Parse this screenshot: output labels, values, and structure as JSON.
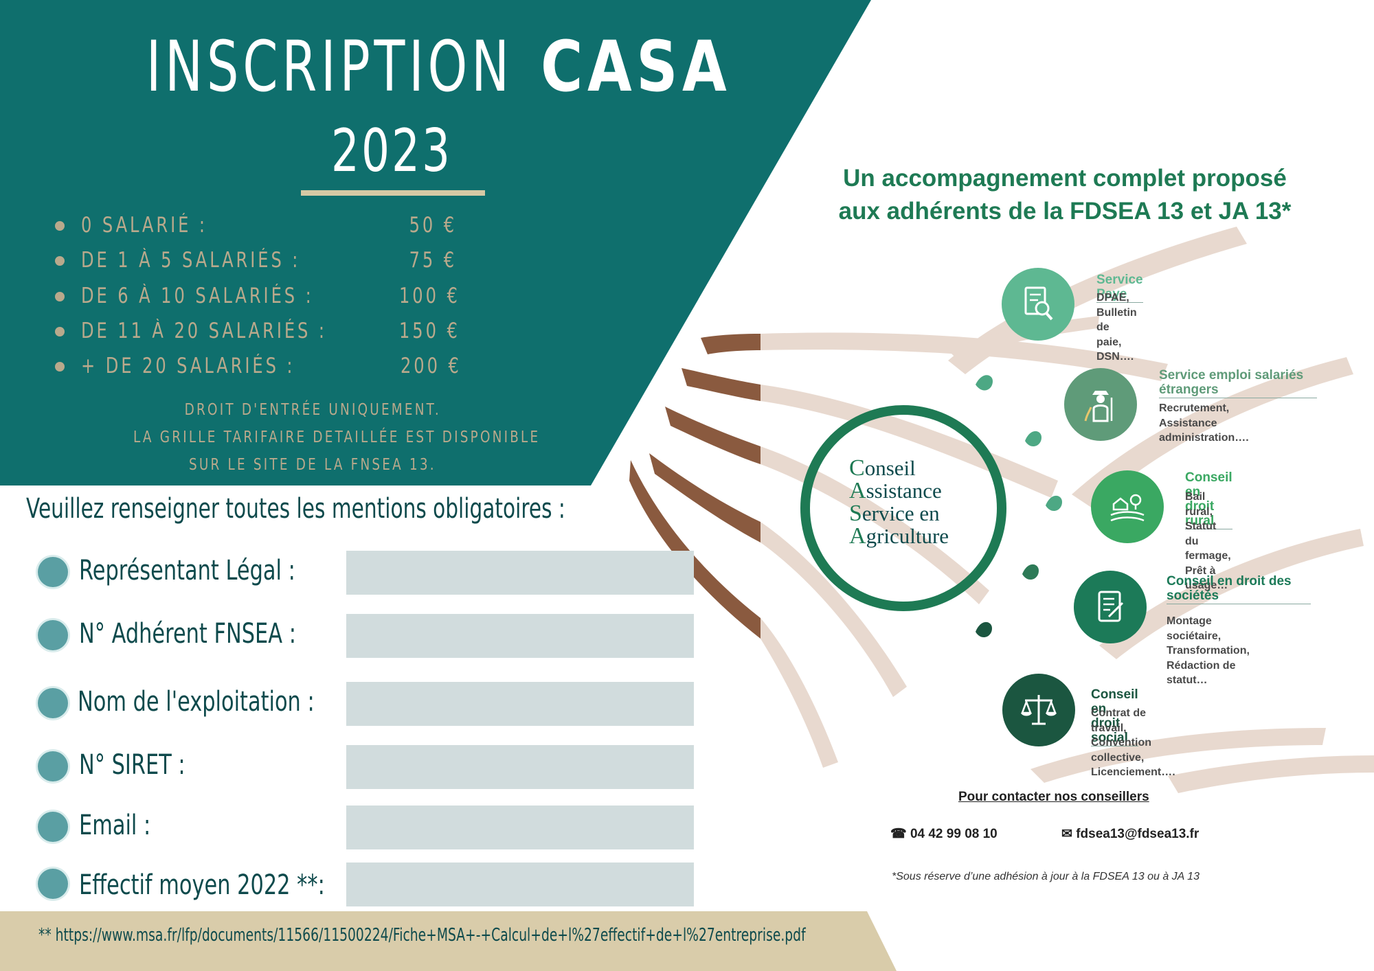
{
  "header": {
    "title_light": "INSCRIPTION",
    "title_bold": "CASA",
    "year": "2023"
  },
  "pricing": [
    {
      "label": " 0 SALARIÉ :",
      "value": "50 €"
    },
    {
      "label": "DE 1 À 5 SALARIÉS :",
      "value": "75 €"
    },
    {
      "label": "DE 6 À 10 SALARIÉS :",
      "value": "100 €"
    },
    {
      "label": "DE 11 À 20 SALARIÉS :",
      "value": "150 €"
    },
    {
      "label": "+ DE 20 SALARIÉS :",
      "value": "200 €"
    }
  ],
  "pricing_note": [
    "DROIT D'ENTRÉE UNIQUEMENT.",
    "LA GRILLE TARIFAIRE DETAILLÉE EST DISPONIBLE",
    "SUR LE SITE DE LA FNSEA 13."
  ],
  "form": {
    "instructions": "Veuillez renseigner toutes les mentions obligatoires :",
    "fields": [
      {
        "label": "Représentant Légal :",
        "value": ""
      },
      {
        "label": "N° Adhérent FNSEA :",
        "value": ""
      },
      {
        "label": "Nom de l'exploitation :",
        "value": ""
      },
      {
        "label": " N° SIRET :",
        "value": ""
      },
      {
        "label": " Email :",
        "value": ""
      },
      {
        "label": " Effectif moyen 2022 **:",
        "value": ""
      }
    ]
  },
  "footer_link": "** https://www.msa.fr/lfp/documents/11566/11500224/Fiche+MSA+-+Calcul+de+l%27effectif+de+l%27entreprise.pdf",
  "headline": {
    "line1": "Un accompagnement complet proposé",
    "line2": "aux adhérents de la FDSEA 13 et JA 13*"
  },
  "casa_acronym": [
    {
      "initial": "C",
      "rest": "onseil"
    },
    {
      "initial": "A",
      "rest": "ssistance"
    },
    {
      "initial": "S",
      "rest": "ervice en"
    },
    {
      "initial": "A",
      "rest": "griculture"
    }
  ],
  "services": [
    {
      "title": "Service Paye",
      "description": "DPAE,\nBulletin de paie,\nDSN….",
      "icon": "document-search-icon",
      "color": "#5eb892",
      "title_color": "#5eb892"
    },
    {
      "title": "Service emploi salariés étrangers",
      "description": "Recrutement,\nAssistance administration….",
      "icon": "farmer-icon",
      "color": "#5f9b79",
      "title_color": "#5f9b79"
    },
    {
      "title": "Conseil en droit rural",
      "description": "Bail rural,\nStatut du fermage,\nPrêt à usage…",
      "icon": "farm-field-icon",
      "color": "#3aa862",
      "title_color": "#3aa862"
    },
    {
      "title": "Conseil en droit des sociétés",
      "description": "Montage sociétaire,\nTransformation,\nRédaction de statut…",
      "icon": "scroll-contract-icon",
      "color": "#1c7a58",
      "title_color": "#1c7a58"
    },
    {
      "title": "Conseil en droit social",
      "description": "Contrat de travail,\nConvention collective,\nLicenciement….",
      "icon": "justice-scales-icon",
      "color": "#1b5640",
      "title_color": "#1b5640"
    }
  ],
  "contact": {
    "title": "Pour contacter nos conseillers",
    "phone": "04 42 99 08 10",
    "email": "fdsea13@fdsea13.fr",
    "disclaimer": "*Sous réserve d’une adhésion à jour à la FDSEA 13 ou à JA 13"
  },
  "colors": {
    "teal": "#0f6f6d",
    "beige": "#d6c9a5",
    "brown": "#8a5a3f",
    "stripe": "#e8d9cf",
    "dark_green": "#1e7a54",
    "input": "#d1dcdd"
  }
}
